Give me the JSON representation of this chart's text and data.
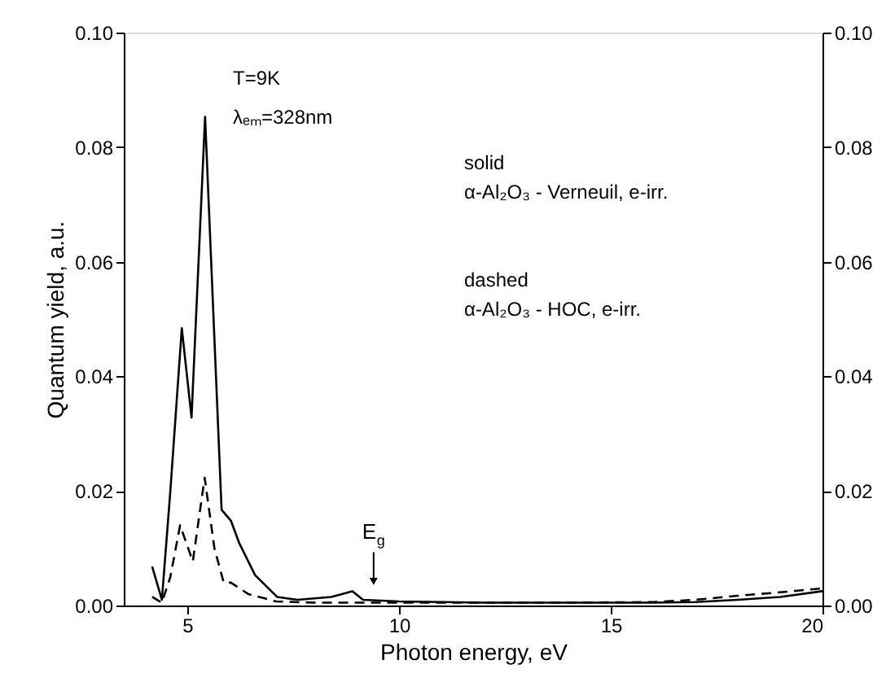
{
  "chart_data": {
    "type": "line",
    "xlabel": "Photon energy, eV",
    "ylabel": "Quantum yield, a.u.",
    "xlim": [
      3.5,
      20
    ],
    "xticks": [
      5,
      10,
      15,
      20
    ],
    "ylim": [
      0,
      0.1
    ],
    "yticks": [
      {
        "value": 0,
        "label": "0.00"
      },
      {
        "value": 0.02,
        "label": "0.02"
      },
      {
        "value": 0.04,
        "label": "0.04"
      },
      {
        "value": 0.06,
        "label": "0.06"
      },
      {
        "value": 0.08,
        "label": "0.08"
      },
      {
        "value": 0.1,
        "label": "0.10"
      }
    ],
    "y2lim": [
      0,
      0.1
    ],
    "y2ticks": [
      {
        "value": 0,
        "label": "0.00"
      },
      {
        "value": 0.02,
        "label": "0.02"
      },
      {
        "value": 0.04,
        "label": "0.04"
      },
      {
        "value": 0.06,
        "label": "0.06"
      },
      {
        "value": 0.08,
        "label": "0.08"
      },
      {
        "value": 0.1,
        "label": "0.10"
      }
    ],
    "grid": false,
    "marker": "none",
    "series": [
      {
        "color": "#000000",
        "line_style": "solid",
        "x": [
          4.17,
          4.4,
          4.6,
          4.87,
          5.1,
          5.42,
          5.81,
          6.03,
          6.22,
          6.6,
          7.12,
          7.6,
          8.4,
          8.9,
          9.15,
          10,
          12,
          14,
          16,
          17,
          18,
          19,
          20
        ],
        "values": [
          0.0068,
          0.001,
          0.02,
          0.0484,
          0.0328,
          0.0853,
          0.0167,
          0.0148,
          0.011,
          0.0053,
          0.0015,
          0.001,
          0.0015,
          0.0025,
          0.001,
          0.0007,
          0.0005,
          0.0005,
          0.0005,
          0.0006,
          0.001,
          0.0015,
          0.0025
        ]
      },
      {
        "color": "#000000",
        "line_style": "dashed",
        "x": [
          4.17,
          4.4,
          4.6,
          4.83,
          5.13,
          5.41,
          5.64,
          5.86,
          6.03,
          6.44,
          7.1,
          8,
          10,
          12,
          14,
          16,
          17,
          18,
          19,
          20
        ],
        "values": [
          0.0015,
          0.0005,
          0.005,
          0.014,
          0.0077,
          0.0223,
          0.01,
          0.004,
          0.004,
          0.002,
          0.0007,
          0.0005,
          0.0005,
          0.0005,
          0.0005,
          0.0006,
          0.001,
          0.0017,
          0.0023,
          0.003
        ]
      }
    ],
    "annotations": [
      "T=9K",
      "λₑₘ=328nm",
      "solid",
      "α-Al₂O₃ - Verneuil, e-irr.",
      "dashed",
      "α-Al₂O₃ - HOC, e-irr.",
      {
        "text": "E$_{g}$",
        "x": 9.4,
        "y": 0.0025
      }
    ]
  }
}
